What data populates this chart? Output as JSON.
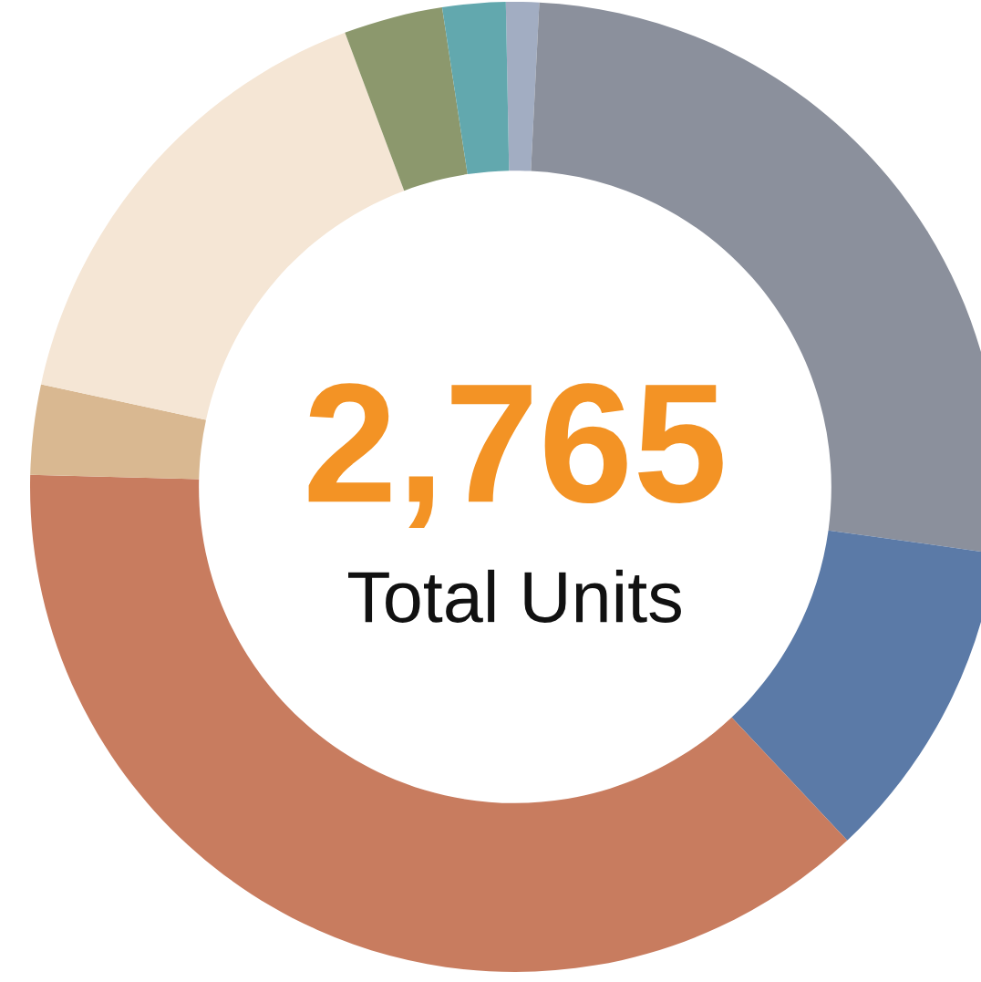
{
  "chart_data": {
    "type": "donut",
    "categories": [
      null,
      null,
      null,
      null,
      null,
      null,
      null,
      null
    ],
    "values": [
      1.1,
      26.4,
      10.8,
      37.4,
      3.0,
      15.9,
      3.3,
      2.1
    ],
    "colors": [
      "#a2adc2",
      "#8b909c",
      "#5b7aa7",
      "#c87c5f",
      "#d9b891",
      "#f5e6d5",
      "#8c986d",
      "#62a8ae"
    ],
    "annotations": [
      "2,765",
      "Total Units"
    ]
  }
}
